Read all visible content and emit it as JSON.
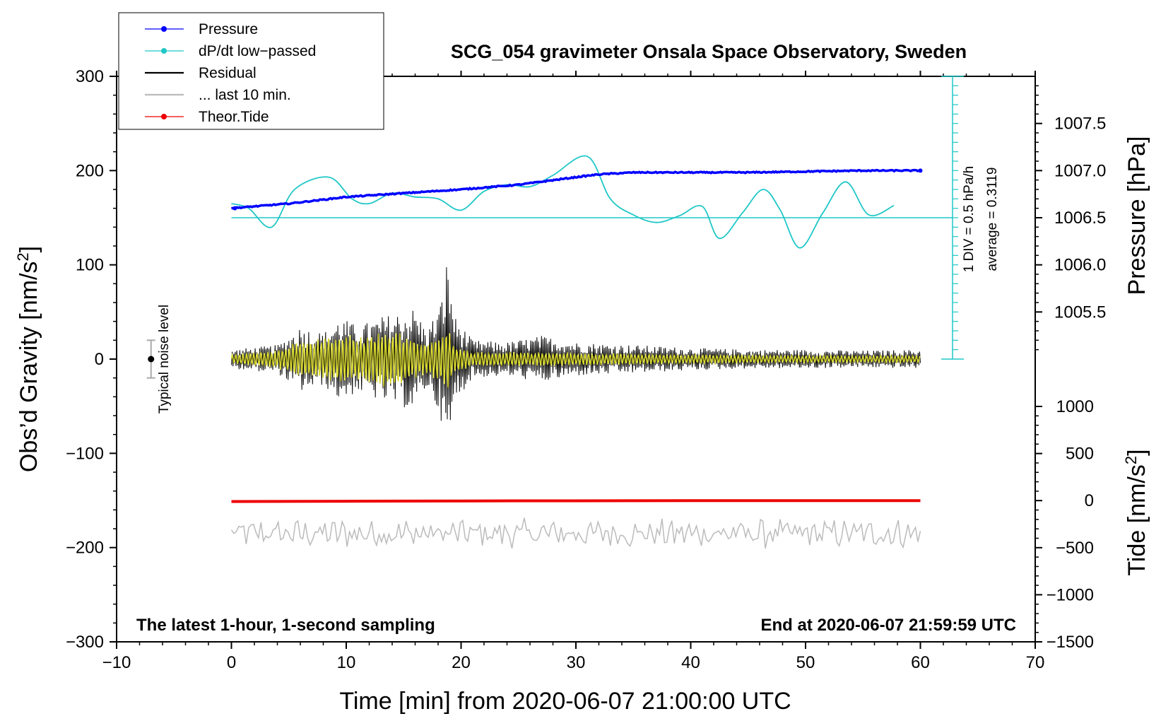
{
  "chart_data": {
    "type": "line",
    "title": "SCG_054 gravimeter Onsala Space Observatory, Sweden",
    "xlabel": "Time [min] from 2020-06-07 21:00:00 UTC",
    "xlim": [
      -10,
      70
    ],
    "x_ticks": [
      -10,
      0,
      10,
      20,
      30,
      40,
      50,
      60,
      70
    ],
    "x_tick_labels": [
      "−10",
      "0",
      "10",
      "20",
      "30",
      "40",
      "50",
      "60",
      "70"
    ],
    "ylabel_left": "Obs’d Gravity [nm/s",
    "ylabel_left_sup": "2",
    "ylabel_left_end": "]",
    "ylim_left": [
      -300,
      300
    ],
    "y_ticks_left": [
      -300,
      -200,
      -100,
      0,
      100,
      200,
      300
    ],
    "y_tick_labels_left": [
      "−300",
      "−200",
      "−100",
      "0",
      "100",
      "200",
      "300"
    ],
    "ylabel_pressure": "Pressure [hPa]",
    "ylim_pressure": [
      1005.0,
      1008.0
    ],
    "y_ticks_pressure": [
      1005.5,
      1006.0,
      1006.5,
      1007.0,
      1007.5
    ],
    "y_tick_labels_pressure": [
      "1005.5",
      "1006.0",
      "1006.5",
      "1007.0",
      "1007.5"
    ],
    "ylabel_tide": "Tide [nm/s",
    "ylabel_tide_sup": "2",
    "ylabel_tide_end": "]",
    "ylim_tide": [
      -1500,
      1000
    ],
    "y_ticks_tide": [
      -1500,
      -1000,
      -500,
      0,
      500,
      1000
    ],
    "y_tick_labels_tide": [
      "−1500",
      "−1000",
      "−500",
      "0",
      "500",
      "1000"
    ],
    "footer_left": "The latest 1-hour, 1-second sampling",
    "footer_right": "End at 2020-06-07 21:59:59 UTC",
    "noise_label": "Typical noise level",
    "noise_bar": {
      "x": -7,
      "center": 0,
      "half_range": 20
    },
    "dpdt_note_1": "1 DIV = 0.5 hPa/h",
    "dpdt_note_2": "average = 0.3119",
    "dpdt_scale": {
      "x": 62.8,
      "baseline": 150,
      "div_value_gravity": 10,
      "divisions": 30
    },
    "legend": [
      {
        "label": "Pressure",
        "color": "#0000ff",
        "marker": true
      },
      {
        "label": "dP/dt low−passed",
        "color": "#1fc7c7",
        "marker": true
      },
      {
        "label": "Residual",
        "color": "#000000",
        "marker": false
      },
      {
        "label": "... last 10 min.",
        "color": "#bbbbbb",
        "marker": false
      },
      {
        "label": "Theor.Tide",
        "color": "#ee0000",
        "marker": true
      }
    ],
    "series": [
      {
        "name": "Pressure",
        "axis": "pressure",
        "color": "#0000ff",
        "x": [
          0,
          5,
          10,
          15,
          20,
          25,
          30,
          32,
          35,
          40,
          45,
          50,
          55,
          60
        ],
        "y": [
          1006.6,
          1006.65,
          1006.72,
          1006.76,
          1006.8,
          1006.85,
          1006.93,
          1006.96,
          1006.98,
          1006.98,
          1006.98,
          1006.99,
          1007.0,
          1007.0
        ]
      },
      {
        "name": "dP/dt low-passed",
        "axis": "left",
        "color": "#1fc7c7",
        "x": [
          0,
          1.5,
          3.5,
          5.5,
          8.5,
          10.5,
          12,
          14,
          16,
          18,
          20,
          22,
          24,
          26,
          28,
          31,
          33,
          35,
          37,
          39,
          41,
          42.5,
          44.5,
          46.3,
          47.8,
          49.5,
          51.5,
          53.5,
          55.5,
          57.7
        ],
        "y": [
          165,
          160,
          140,
          180,
          193,
          170,
          165,
          176,
          172,
          170,
          158,
          178,
          185,
          183,
          195,
          215,
          170,
          153,
          145,
          152,
          162,
          128,
          155,
          180,
          158,
          118,
          155,
          188,
          153,
          163
        ]
      },
      {
        "name": "Residual",
        "axis": "left",
        "color": "#000000",
        "x_start": 0,
        "x_end": 60,
        "envelope": {
          "x": [
            0,
            4,
            6,
            8,
            9.5,
            11,
            13,
            14.5,
            16,
            17,
            18.2,
            18.8,
            19.5,
            21,
            24,
            27,
            30,
            35,
            40,
            45,
            50,
            55,
            60
          ],
          "amp": [
            10,
            15,
            35,
            28,
            45,
            35,
            45,
            50,
            55,
            30,
            60,
            110,
            45,
            20,
            18,
            25,
            18,
            15,
            12,
            10,
            10,
            9,
            10
          ]
        }
      },
      {
        "name": "Residual (filtered)",
        "axis": "left",
        "color": "#d9d930",
        "x_start": 0,
        "x_end": 60,
        "envelope": {
          "x": [
            0,
            4,
            6,
            8,
            9.5,
            11,
            13,
            14.5,
            16,
            17,
            18.2,
            18.8,
            19.5,
            21,
            24,
            30,
            40,
            50,
            60
          ],
          "amp": [
            5,
            10,
            22,
            22,
            30,
            25,
            30,
            30,
            22,
            18,
            25,
            35,
            15,
            8,
            8,
            7,
            5,
            4,
            4
          ]
        }
      },
      {
        "name": "... last 10 min.",
        "axis": "left",
        "color": "#bbbbbb",
        "x_start": 0,
        "x_end": 60,
        "baseline": -185,
        "amp": 12
      },
      {
        "name": "Theor.Tide",
        "axis": "tide",
        "color": "#ee0000",
        "x": [
          0,
          10,
          20,
          30,
          40,
          50,
          60
        ],
        "y": [
          -10,
          -7,
          -4,
          -2,
          -1,
          0,
          0
        ]
      }
    ]
  }
}
